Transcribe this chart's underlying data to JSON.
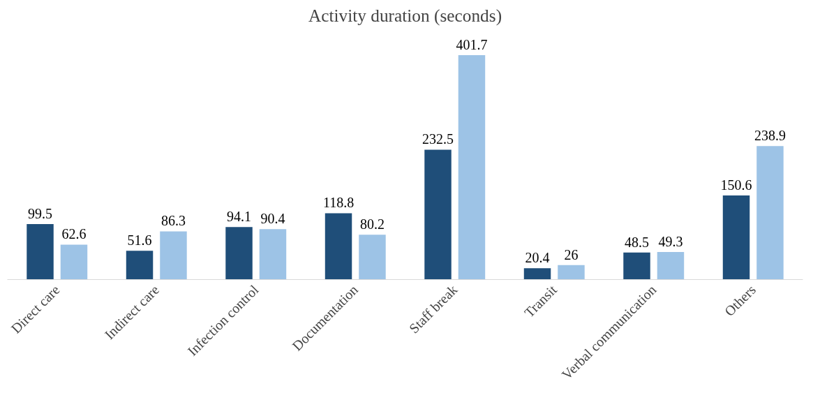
{
  "chart_data": {
    "type": "bar",
    "title": "Activity duration (seconds)",
    "categories": [
      "Direct care",
      "Indirect care",
      "Infection control",
      "Documentation",
      "Staff break",
      "Transit",
      "Verbal communication",
      "Others"
    ],
    "series": [
      {
        "color": "#1f4e79",
        "values": [
          99.5,
          51.6,
          94.1,
          118.8,
          232.5,
          20.4,
          48.5,
          150.6
        ]
      },
      {
        "color": "#9dc3e6",
        "values": [
          62.6,
          86.3,
          90.4,
          80.2,
          401.7,
          26,
          49.3,
          238.9
        ]
      }
    ],
    "data_labels": true,
    "grid": false
  }
}
